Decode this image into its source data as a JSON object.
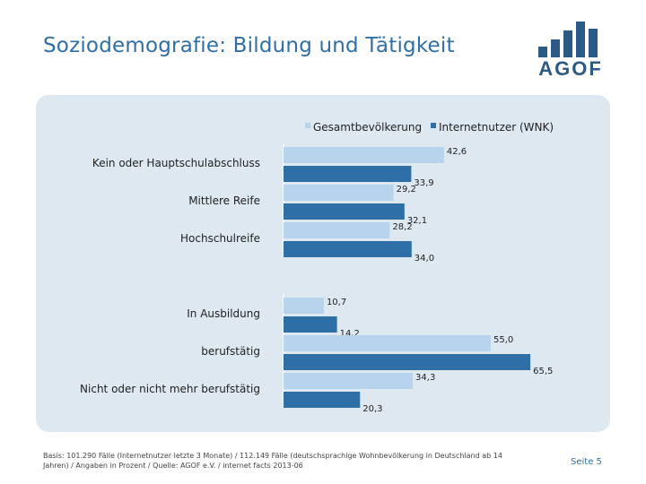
{
  "page": {
    "title": "Soziodemografie: Bildung und Tätigkeit",
    "footnote": "Basis: 101.290 Fälle (Internetnutzer letzte 3 Monate) / 112.149 Fälle (deutschsprachige Wohnbevölkerung in Deutschland ab 14 Jahren) / Angaben in Prozent / Quelle: AGOF e.V. / internet facts 2013-06",
    "page_number": "Seite 5"
  },
  "logo": {
    "text": "AGOF",
    "color": "#2c5a86"
  },
  "colors": {
    "series1": "#b8d3ec",
    "series2": "#2f6fa8",
    "panel": "#dde8f1",
    "title": "#2f6fa8"
  },
  "chart_data": {
    "type": "bar",
    "orientation": "horizontal",
    "title": "",
    "xlabel": "",
    "ylabel": "",
    "xlim": [
      0,
      70
    ],
    "grid": false,
    "legend": "top",
    "categories": [
      "Kein oder Hauptschulabschluss",
      "Mittlere Reife",
      "Hochschulreife",
      "In Ausbildung",
      "berufstätig",
      "Nicht oder nicht mehr berufstätig"
    ],
    "groups": [
      [
        0,
        1,
        2
      ],
      [
        3,
        4,
        5
      ]
    ],
    "series": [
      {
        "name": "Gesamtbevölkerung",
        "values": [
          42.6,
          29.2,
          28.2,
          10.7,
          55.0,
          34.3
        ],
        "labels": [
          "42,6",
          "29,2",
          "28,2",
          "10,7",
          "55,0",
          "34,3"
        ]
      },
      {
        "name": "Internetnutzer (WNK)",
        "values": [
          33.9,
          32.1,
          34.0,
          14.2,
          65.5,
          20.3
        ],
        "labels": [
          "33,9",
          "32,1",
          "34,0",
          "14,2",
          "65,5",
          "20,3"
        ]
      }
    ]
  }
}
